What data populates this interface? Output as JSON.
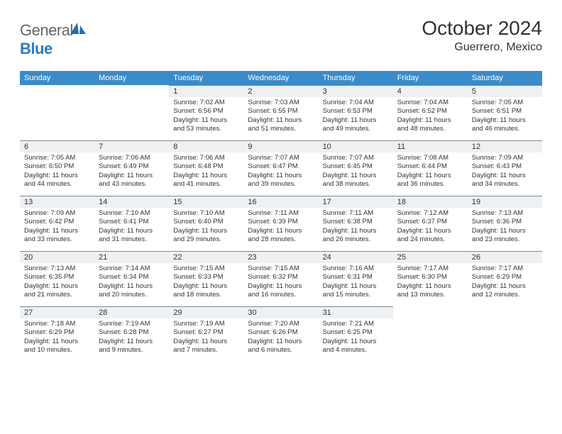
{
  "logo": {
    "general": "General",
    "blue": "Blue"
  },
  "title": "October 2024",
  "location": "Guerrero, Mexico",
  "colors": {
    "header_bg": "#3b8bc9",
    "daynum_bg": "#eef0f2",
    "border": "#7a8a99"
  },
  "day_names": [
    "Sunday",
    "Monday",
    "Tuesday",
    "Wednesday",
    "Thursday",
    "Friday",
    "Saturday"
  ],
  "weeks": [
    [
      null,
      null,
      {
        "n": "1",
        "sr": "Sunrise: 7:02 AM",
        "ss": "Sunset: 6:56 PM",
        "dl1": "Daylight: 11 hours",
        "dl2": "and 53 minutes."
      },
      {
        "n": "2",
        "sr": "Sunrise: 7:03 AM",
        "ss": "Sunset: 6:55 PM",
        "dl1": "Daylight: 11 hours",
        "dl2": "and 51 minutes."
      },
      {
        "n": "3",
        "sr": "Sunrise: 7:04 AM",
        "ss": "Sunset: 6:53 PM",
        "dl1": "Daylight: 11 hours",
        "dl2": "and 49 minutes."
      },
      {
        "n": "4",
        "sr": "Sunrise: 7:04 AM",
        "ss": "Sunset: 6:52 PM",
        "dl1": "Daylight: 11 hours",
        "dl2": "and 48 minutes."
      },
      {
        "n": "5",
        "sr": "Sunrise: 7:05 AM",
        "ss": "Sunset: 6:51 PM",
        "dl1": "Daylight: 11 hours",
        "dl2": "and 46 minutes."
      }
    ],
    [
      {
        "n": "6",
        "sr": "Sunrise: 7:05 AM",
        "ss": "Sunset: 6:50 PM",
        "dl1": "Daylight: 11 hours",
        "dl2": "and 44 minutes."
      },
      {
        "n": "7",
        "sr": "Sunrise: 7:06 AM",
        "ss": "Sunset: 6:49 PM",
        "dl1": "Daylight: 11 hours",
        "dl2": "and 43 minutes."
      },
      {
        "n": "8",
        "sr": "Sunrise: 7:06 AM",
        "ss": "Sunset: 6:48 PM",
        "dl1": "Daylight: 11 hours",
        "dl2": "and 41 minutes."
      },
      {
        "n": "9",
        "sr": "Sunrise: 7:07 AM",
        "ss": "Sunset: 6:47 PM",
        "dl1": "Daylight: 11 hours",
        "dl2": "and 39 minutes."
      },
      {
        "n": "10",
        "sr": "Sunrise: 7:07 AM",
        "ss": "Sunset: 6:45 PM",
        "dl1": "Daylight: 11 hours",
        "dl2": "and 38 minutes."
      },
      {
        "n": "11",
        "sr": "Sunrise: 7:08 AM",
        "ss": "Sunset: 6:44 PM",
        "dl1": "Daylight: 11 hours",
        "dl2": "and 36 minutes."
      },
      {
        "n": "12",
        "sr": "Sunrise: 7:09 AM",
        "ss": "Sunset: 6:43 PM",
        "dl1": "Daylight: 11 hours",
        "dl2": "and 34 minutes."
      }
    ],
    [
      {
        "n": "13",
        "sr": "Sunrise: 7:09 AM",
        "ss": "Sunset: 6:42 PM",
        "dl1": "Daylight: 11 hours",
        "dl2": "and 33 minutes."
      },
      {
        "n": "14",
        "sr": "Sunrise: 7:10 AM",
        "ss": "Sunset: 6:41 PM",
        "dl1": "Daylight: 11 hours",
        "dl2": "and 31 minutes."
      },
      {
        "n": "15",
        "sr": "Sunrise: 7:10 AM",
        "ss": "Sunset: 6:40 PM",
        "dl1": "Daylight: 11 hours",
        "dl2": "and 29 minutes."
      },
      {
        "n": "16",
        "sr": "Sunrise: 7:11 AM",
        "ss": "Sunset: 6:39 PM",
        "dl1": "Daylight: 11 hours",
        "dl2": "and 28 minutes."
      },
      {
        "n": "17",
        "sr": "Sunrise: 7:11 AM",
        "ss": "Sunset: 6:38 PM",
        "dl1": "Daylight: 11 hours",
        "dl2": "and 26 minutes."
      },
      {
        "n": "18",
        "sr": "Sunrise: 7:12 AM",
        "ss": "Sunset: 6:37 PM",
        "dl1": "Daylight: 11 hours",
        "dl2": "and 24 minutes."
      },
      {
        "n": "19",
        "sr": "Sunrise: 7:13 AM",
        "ss": "Sunset: 6:36 PM",
        "dl1": "Daylight: 11 hours",
        "dl2": "and 23 minutes."
      }
    ],
    [
      {
        "n": "20",
        "sr": "Sunrise: 7:13 AM",
        "ss": "Sunset: 6:35 PM",
        "dl1": "Daylight: 11 hours",
        "dl2": "and 21 minutes."
      },
      {
        "n": "21",
        "sr": "Sunrise: 7:14 AM",
        "ss": "Sunset: 6:34 PM",
        "dl1": "Daylight: 11 hours",
        "dl2": "and 20 minutes."
      },
      {
        "n": "22",
        "sr": "Sunrise: 7:15 AM",
        "ss": "Sunset: 6:33 PM",
        "dl1": "Daylight: 11 hours",
        "dl2": "and 18 minutes."
      },
      {
        "n": "23",
        "sr": "Sunrise: 7:15 AM",
        "ss": "Sunset: 6:32 PM",
        "dl1": "Daylight: 11 hours",
        "dl2": "and 16 minutes."
      },
      {
        "n": "24",
        "sr": "Sunrise: 7:16 AM",
        "ss": "Sunset: 6:31 PM",
        "dl1": "Daylight: 11 hours",
        "dl2": "and 15 minutes."
      },
      {
        "n": "25",
        "sr": "Sunrise: 7:17 AM",
        "ss": "Sunset: 6:30 PM",
        "dl1": "Daylight: 11 hours",
        "dl2": "and 13 minutes."
      },
      {
        "n": "26",
        "sr": "Sunrise: 7:17 AM",
        "ss": "Sunset: 6:29 PM",
        "dl1": "Daylight: 11 hours",
        "dl2": "and 12 minutes."
      }
    ],
    [
      {
        "n": "27",
        "sr": "Sunrise: 7:18 AM",
        "ss": "Sunset: 6:29 PM",
        "dl1": "Daylight: 11 hours",
        "dl2": "and 10 minutes."
      },
      {
        "n": "28",
        "sr": "Sunrise: 7:19 AM",
        "ss": "Sunset: 6:28 PM",
        "dl1": "Daylight: 11 hours",
        "dl2": "and 9 minutes."
      },
      {
        "n": "29",
        "sr": "Sunrise: 7:19 AM",
        "ss": "Sunset: 6:27 PM",
        "dl1": "Daylight: 11 hours",
        "dl2": "and 7 minutes."
      },
      {
        "n": "30",
        "sr": "Sunrise: 7:20 AM",
        "ss": "Sunset: 6:26 PM",
        "dl1": "Daylight: 11 hours",
        "dl2": "and 6 minutes."
      },
      {
        "n": "31",
        "sr": "Sunrise: 7:21 AM",
        "ss": "Sunset: 6:25 PM",
        "dl1": "Daylight: 11 hours",
        "dl2": "and 4 minutes."
      },
      null,
      null
    ]
  ]
}
